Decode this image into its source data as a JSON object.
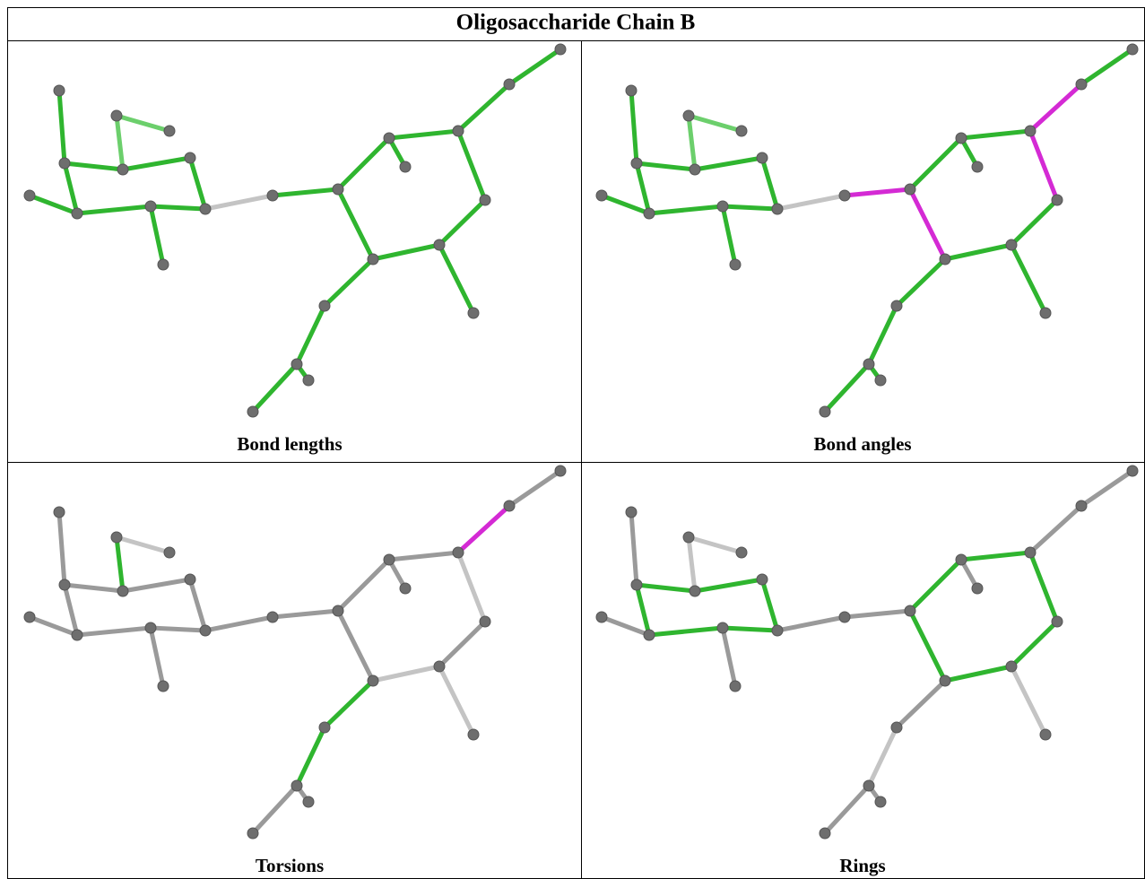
{
  "header": {
    "title": "Oligosaccharide Chain B"
  },
  "panels": [
    {
      "caption": "Bond lengths"
    },
    {
      "caption": "Bond angles"
    },
    {
      "caption": "Torsions"
    },
    {
      "caption": "Rings"
    }
  ]
}
